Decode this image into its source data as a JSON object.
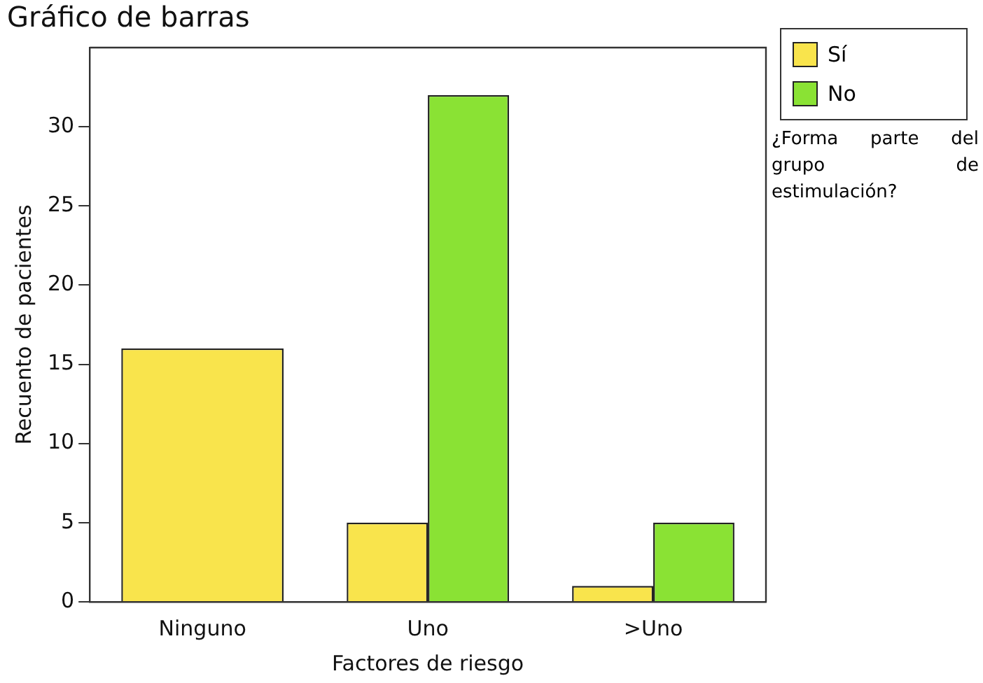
{
  "chart_data": {
    "type": "bar",
    "title": "Gráfico de barras",
    "xlabel": "Factores de riesgo",
    "ylabel": "Recuento de pacientes",
    "legend_title": "¿Forma parte del grupo de estimulación?",
    "categories": [
      "Ninguno",
      "Uno",
      ">Uno"
    ],
    "series": [
      {
        "name": "Sí",
        "color": "#f9e44c",
        "values": [
          16,
          5,
          1
        ]
      },
      {
        "name": "No",
        "color": "#8ae234",
        "values": [
          null,
          32,
          5
        ]
      }
    ],
    "ylim": [
      0,
      35
    ],
    "yticks": [
      0,
      5,
      10,
      15,
      20,
      25,
      30
    ],
    "grid": false,
    "legend": "right"
  }
}
